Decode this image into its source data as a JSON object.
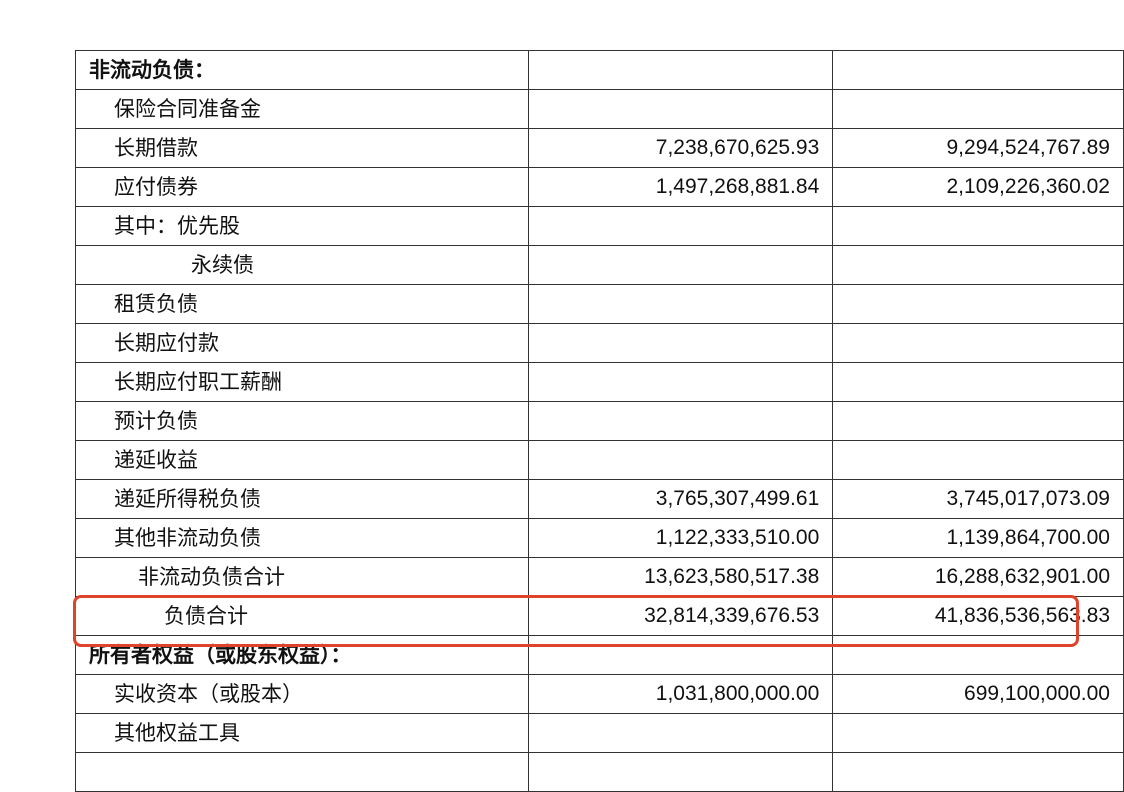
{
  "highlight_color": "#e0432b",
  "rows": [
    {
      "label": "非流动负债：",
      "level": 0,
      "current": "",
      "previous": ""
    },
    {
      "label": "保险合同准备金",
      "level": 1,
      "current": "",
      "previous": ""
    },
    {
      "label": "长期借款",
      "level": 1,
      "current": "7,238,670,625.93",
      "previous": "9,294,524,767.89"
    },
    {
      "label": "应付债券",
      "level": 1,
      "current": "1,497,268,881.84",
      "previous": "2,109,226,360.02"
    },
    {
      "label": "其中：优先股",
      "level": 1,
      "current": "",
      "previous": ""
    },
    {
      "label": "永续债",
      "level": 2,
      "current": "",
      "previous": ""
    },
    {
      "label": "租赁负债",
      "level": 1,
      "current": "",
      "previous": ""
    },
    {
      "label": "长期应付款",
      "level": 1,
      "current": "",
      "previous": ""
    },
    {
      "label": "长期应付职工薪酬",
      "level": 1,
      "current": "",
      "previous": ""
    },
    {
      "label": "预计负债",
      "level": 1,
      "current": "",
      "previous": ""
    },
    {
      "label": "递延收益",
      "level": 1,
      "current": "",
      "previous": ""
    },
    {
      "label": "递延所得税负债",
      "level": 1,
      "current": "3,765,307,499.61",
      "previous": "3,745,017,073.09"
    },
    {
      "label": "其他非流动负债",
      "level": 1,
      "current": "1,122,333,510.00",
      "previous": "1,139,864,700.00"
    },
    {
      "label": "非流动负债合计",
      "level": 3,
      "current": "13,623,580,517.38",
      "previous": "16,288,632,901.00"
    },
    {
      "label": "负债合计",
      "level": 4,
      "current": "32,814,339,676.53",
      "previous": "41,836,536,563.83",
      "highlighted": true
    },
    {
      "label": "所有者权益（或股东权益）：",
      "level": 0,
      "current": "",
      "previous": ""
    },
    {
      "label": "实收资本（或股本）",
      "level": 1,
      "current": "1,031,800,000.00",
      "previous": "699,100,000.00"
    },
    {
      "label": "其他权益工具",
      "level": 1,
      "current": "",
      "previous": ""
    },
    {
      "label": "",
      "level": 1,
      "current": "",
      "previous": ""
    }
  ]
}
